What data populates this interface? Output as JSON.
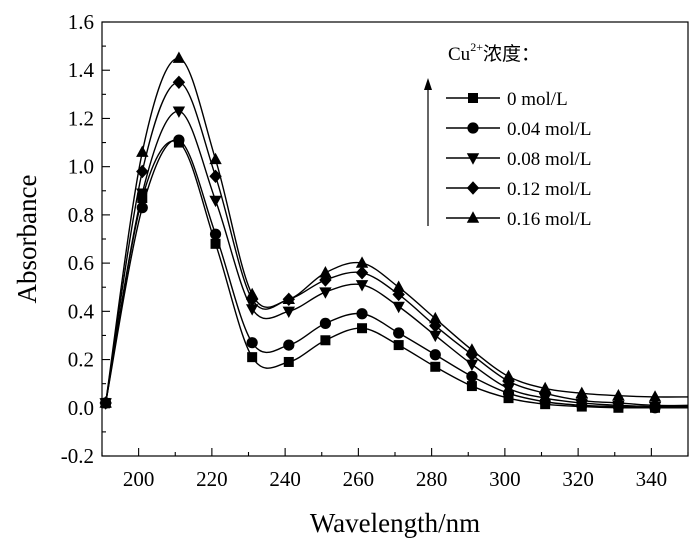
{
  "chart_data": {
    "type": "line",
    "xlabel": "Wavelength/nm",
    "ylabel": "Absorbance",
    "xlim": [
      190,
      350
    ],
    "ylim": [
      -0.2,
      1.6
    ],
    "x_ticks": [
      200,
      220,
      240,
      260,
      280,
      300,
      320,
      340
    ],
    "y_ticks": [
      -0.2,
      0.0,
      0.2,
      0.4,
      0.6,
      0.8,
      1.0,
      1.2,
      1.4,
      1.6
    ],
    "x_tick_labels": [
      "200",
      "220",
      "240",
      "260",
      "280",
      "300",
      "320",
      "340"
    ],
    "y_tick_labels": [
      "-0.2",
      "0.0",
      "0.2",
      "0.4",
      "0.6",
      "0.8",
      "1.0",
      "1.2",
      "1.4",
      "1.6"
    ],
    "grid": false,
    "legend": {
      "placement": "top-right",
      "title_base": "Cu",
      "title_sup": "2+",
      "title_suffix": "浓度："
    },
    "marker_x": [
      191,
      201,
      211,
      221,
      231,
      241,
      251,
      261,
      271,
      281,
      291,
      301,
      311,
      321,
      331,
      341
    ],
    "series": [
      {
        "name": "0 mol/L",
        "marker": "square",
        "values": [
          0.02,
          0.87,
          1.1,
          0.68,
          0.21,
          0.19,
          0.28,
          0.33,
          0.26,
          0.17,
          0.09,
          0.04,
          0.015,
          0.005,
          0.0,
          0.0
        ]
      },
      {
        "name": "0.04 mol/L",
        "marker": "circle",
        "values": [
          0.02,
          0.83,
          1.11,
          0.72,
          0.27,
          0.26,
          0.35,
          0.39,
          0.31,
          0.22,
          0.13,
          0.06,
          0.025,
          0.01,
          0.005,
          0.0
        ]
      },
      {
        "name": "0.08 mol/L",
        "marker": "triangle-down",
        "values": [
          0.02,
          0.89,
          1.23,
          0.86,
          0.41,
          0.4,
          0.48,
          0.51,
          0.42,
          0.3,
          0.18,
          0.08,
          0.04,
          0.02,
          0.01,
          0.005
        ]
      },
      {
        "name": "0.12 mol/L",
        "marker": "diamond",
        "values": [
          0.02,
          0.98,
          1.35,
          0.96,
          0.45,
          0.45,
          0.53,
          0.56,
          0.47,
          0.34,
          0.22,
          0.11,
          0.06,
          0.03,
          0.02,
          0.01
        ]
      },
      {
        "name": "0.16 mol/L",
        "marker": "triangle-up",
        "values": [
          0.02,
          1.06,
          1.45,
          1.03,
          0.47,
          0.45,
          0.56,
          0.6,
          0.5,
          0.37,
          0.24,
          0.13,
          0.08,
          0.06,
          0.05,
          0.045
        ]
      }
    ]
  }
}
